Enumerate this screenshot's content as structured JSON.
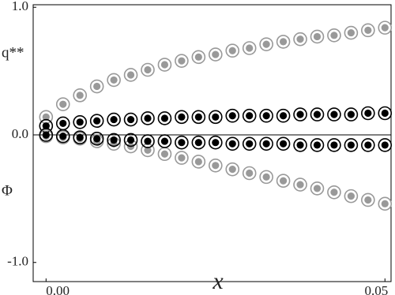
{
  "chart_data": {
    "type": "scatter",
    "x_label": "x",
    "annotations": [
      "q**",
      "Φ"
    ],
    "x": [
      0,
      0.0025,
      0.005,
      0.0075,
      0.01,
      0.0125,
      0.015,
      0.0175,
      0.02,
      0.0225,
      0.025,
      0.0275,
      0.03,
      0.0325,
      0.035,
      0.0375,
      0.04,
      0.0425,
      0.045,
      0.0475,
      0.05
    ],
    "series": [
      {
        "color": "#999999",
        "values": [
          0.14,
          0.24,
          0.31,
          0.38,
          0.43,
          0.47,
          0.51,
          0.55,
          0.58,
          0.61,
          0.63,
          0.66,
          0.68,
          0.71,
          0.73,
          0.75,
          0.77,
          0.78,
          0.8,
          0.82,
          0.84
        ]
      },
      {
        "color": "#000000",
        "values": [
          0.07,
          0.09,
          0.1,
          0.11,
          0.12,
          0.12,
          0.13,
          0.13,
          0.14,
          0.14,
          0.14,
          0.15,
          0.15,
          0.15,
          0.15,
          0.16,
          0.16,
          0.16,
          0.16,
          0.17,
          0.17
        ]
      },
      {
        "color": "#999999",
        "values": [
          -0.01,
          -0.02,
          -0.03,
          -0.05,
          -0.07,
          -0.09,
          -0.12,
          -0.15,
          -0.18,
          -0.21,
          -0.24,
          -0.27,
          -0.3,
          -0.33,
          -0.36,
          -0.39,
          -0.42,
          -0.45,
          -0.48,
          -0.51,
          -0.54
        ]
      },
      {
        "color": "#000000",
        "values": [
          0,
          -0.01,
          -0.02,
          -0.03,
          -0.04,
          -0.04,
          -0.05,
          -0.05,
          -0.06,
          -0.06,
          -0.06,
          -0.07,
          -0.07,
          -0.07,
          -0.07,
          -0.08,
          -0.08,
          -0.08,
          -0.08,
          -0.08,
          -0.08
        ]
      }
    ],
    "xlim": [
      -0.0019,
      0.0509
    ],
    "xticks": [
      {
        "value": 0,
        "label": "0.00"
      },
      0.05
    ],
    "ylim": [
      -1.15,
      1.02
    ],
    "yticks": [
      {
        "value": 1,
        "label": "1.0"
      },
      {
        "value": 0,
        "label": "0.0"
      },
      {
        "value": -1,
        "label": "-1.0"
      }
    ],
    "zero_line": true
  }
}
